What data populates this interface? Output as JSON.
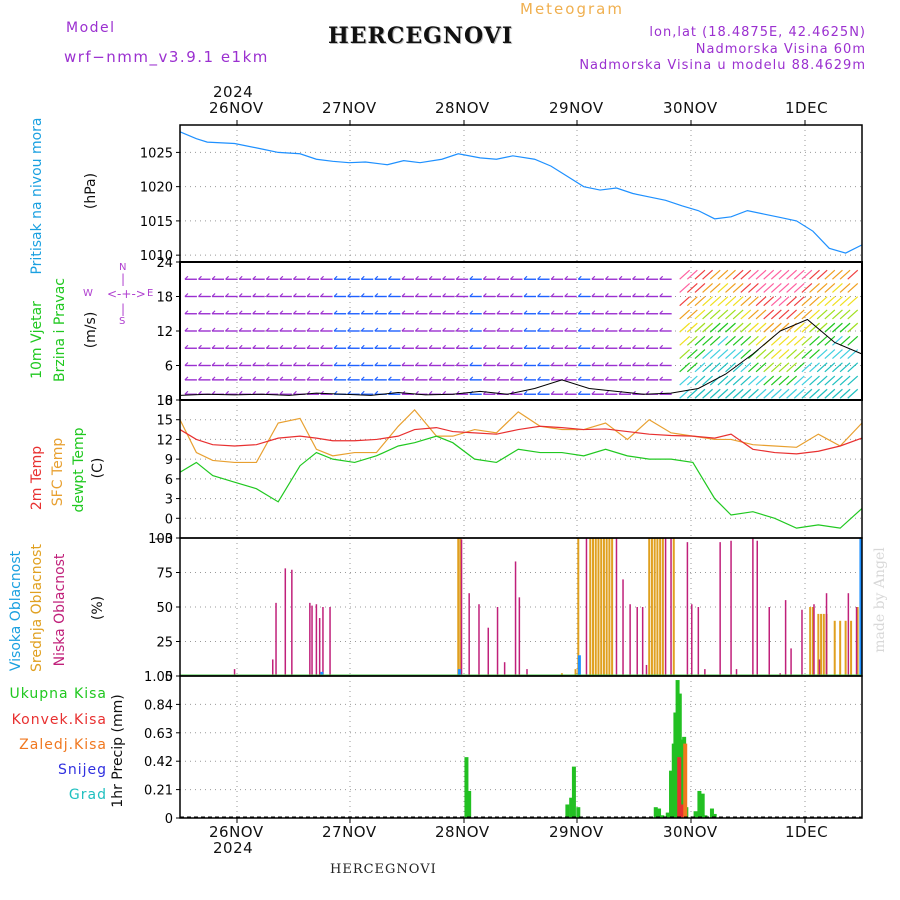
{
  "header": {
    "model_label": "Model",
    "model_name": "wrf−nmm_v3.9.1  e1km",
    "meteogram_label": "Meteogram",
    "location": "HERCEGNOVI",
    "lonlat": "lon,lat (18.4875E, 42.4625N)",
    "elevation": "Nadmorska Visina 60m",
    "model_elevation": "Nadmorska Visina u modelu 88.4629m"
  },
  "dates_top": [
    "26NOV",
    "27NOV",
    "28NOV",
    "29NOV",
    "30NOV",
    "1DEC"
  ],
  "dates_bottom": [
    "26NOV",
    "27NOV",
    "28NOV",
    "29NOV",
    "30NOV",
    "1DEC"
  ],
  "year": "2024",
  "footer": "HERCEGNOVI",
  "watermark": "made by Angel",
  "colors": {
    "pressure": "#1e90ff",
    "wind_speed": "#000000",
    "temp2m": "#e83030",
    "sfc_temp": "#e8a030",
    "dewpt": "#20c820",
    "high_cloud": "#1e90ff",
    "mid_cloud": "#e0a020",
    "low_cloud": "#c0207a",
    "total_precip": "#22c022",
    "conv_precip": "#e83030",
    "frz_precip": "#f07820",
    "snow": "#3030e0",
    "graupel": "#20c0c0"
  },
  "panels": {
    "pressure": {
      "labels": [
        "Pritisak na nivou mora"
      ],
      "unit": "(hPa)",
      "yticks": [
        "1010",
        "1015",
        "1020",
        "1025"
      ]
    },
    "wind": {
      "labels": [
        "10m Vjetar",
        "Brzina i Pravac"
      ],
      "unit": "(m/s)",
      "yticks": [
        "0",
        "6",
        "12",
        "18",
        "24"
      ],
      "compass": [
        "N",
        "E",
        "S",
        "W"
      ]
    },
    "temp": {
      "labels": [
        "2m Temp",
        "SFC Temp",
        "dewpt Temp"
      ],
      "unit": "(C)",
      "yticks": [
        "−3",
        "0",
        "3",
        "6",
        "9",
        "12",
        "15",
        "18"
      ]
    },
    "cloud": {
      "labels": [
        "Visoka Oblacnost",
        "Srednja Oblacnost",
        "Niska Oblacnost"
      ],
      "unit": "(%)",
      "yticks": [
        "0",
        "25",
        "50",
        "75",
        "100"
      ]
    },
    "precip": {
      "labels": [
        "Ukupna Kisa",
        "Konvek.Kisa",
        "Zaledj.Kisa",
        "Snijeg",
        "Grad"
      ],
      "unit": "1hr Precip (mm)",
      "yticks": [
        "0",
        "0.21",
        "0.42",
        "0.63",
        "0.84",
        "1.05"
      ]
    }
  },
  "chart_data": [
    {
      "type": "line",
      "name": "pressure",
      "x": [
        0,
        0.3,
        0.5,
        1.0,
        1.5,
        1.8,
        2.2,
        2.5,
        2.8,
        3.1,
        3.4,
        3.8,
        4.1,
        4.4,
        4.8,
        5.1,
        5.5,
        5.8,
        6.1,
        6.5,
        6.8,
        7.1,
        7.4,
        7.7,
        8.0,
        8.3,
        8.6,
        8.9,
        9.2,
        9.5,
        9.8,
        10.1,
        10.4,
        10.7,
        11.0,
        11.3,
        11.6,
        11.9,
        12.2,
        12.5
      ],
      "y": [
        1028,
        1027,
        1026.5,
        1026.3,
        1025.5,
        1025.0,
        1024.8,
        1024.0,
        1023.7,
        1023.5,
        1023.6,
        1023.2,
        1023.8,
        1023.5,
        1024.0,
        1024.8,
        1024.2,
        1024.0,
        1024.5,
        1024.0,
        1023.0,
        1021.5,
        1020.0,
        1019.5,
        1019.8,
        1019.0,
        1018.5,
        1018.0,
        1017.2,
        1016.5,
        1015.3,
        1015.6,
        1016.5,
        1016.0,
        1015.5,
        1015.0,
        1013.5,
        1011.0,
        1010.3,
        1011.5
      ],
      "ylim": [
        1009,
        1029
      ]
    },
    {
      "type": "line",
      "name": "wind_speed",
      "x": [
        0,
        0.5,
        1.0,
        1.5,
        2.0,
        2.5,
        3.0,
        3.5,
        4.0,
        4.5,
        5.0,
        5.5,
        6.0,
        6.5,
        7.0,
        7.5,
        8.0,
        8.5,
        9.0,
        9.5,
        10.0,
        10.5,
        11.0,
        11.5,
        12.0,
        12.5
      ],
      "y": [
        0.8,
        1.0,
        0.9,
        1.0,
        0.8,
        1.2,
        1.0,
        0.8,
        1.3,
        0.9,
        1.0,
        1.5,
        1.0,
        2.0,
        3.5,
        2.0,
        1.5,
        1.0,
        1.2,
        2.0,
        4.5,
        8.0,
        12.0,
        14.0,
        10.0,
        8.0
      ],
      "ylim": [
        0,
        24
      ]
    },
    {
      "type": "line",
      "name": "temperature",
      "x": [
        0,
        0.3,
        0.6,
        1.0,
        1.4,
        1.8,
        2.2,
        2.5,
        2.8,
        3.2,
        3.6,
        4.0,
        4.3,
        4.7,
        5.0,
        5.4,
        5.8,
        6.2,
        6.6,
        7.0,
        7.4,
        7.8,
        8.2,
        8.6,
        9.0,
        9.4,
        9.8,
        10.1,
        10.5,
        10.9,
        11.3,
        11.7,
        12.1,
        12.5
      ],
      "series": [
        {
          "name": "2m Temp",
          "values": [
            13.5,
            12.0,
            11.2,
            11.0,
            11.2,
            12.2,
            12.5,
            12.2,
            11.8,
            11.8,
            12.0,
            12.5,
            13.5,
            13.8,
            13.2,
            13.0,
            12.8,
            13.5,
            14.0,
            13.8,
            13.5,
            13.6,
            13.2,
            12.8,
            12.6,
            12.5,
            12.2,
            12.8,
            10.5,
            10.0,
            9.8,
            10.2,
            11.0,
            12.2
          ]
        },
        {
          "name": "SFC Temp",
          "values": [
            15.0,
            10.0,
            8.8,
            8.5,
            8.5,
            14.5,
            15.2,
            10.5,
            9.5,
            10.0,
            10.0,
            14.0,
            16.5,
            12.5,
            12.5,
            13.5,
            13.0,
            16.2,
            14.0,
            13.5,
            13.5,
            14.5,
            12.0,
            15.0,
            13.0,
            12.5,
            12.0,
            12.0,
            11.2,
            11.0,
            10.8,
            12.8,
            11.0,
            14.5
          ]
        },
        {
          "name": "dewpt Temp",
          "values": [
            7.0,
            8.5,
            6.5,
            5.5,
            4.5,
            2.5,
            8.0,
            10.0,
            9.0,
            8.5,
            9.5,
            11.0,
            11.5,
            12.5,
            11.5,
            9.0,
            8.5,
            10.5,
            10.0,
            10.0,
            9.5,
            10.5,
            9.5,
            9.0,
            9.0,
            8.5,
            3.0,
            0.5,
            1.0,
            0.0,
            -1.5,
            -1.0,
            -1.5,
            1.5
          ]
        }
      ],
      "ylim": [
        -3,
        18
      ]
    },
    {
      "type": "bar",
      "name": "cloud_cover",
      "series": [
        {
          "name": "Visoka Oblacnost",
          "x": [
            2.6,
            5.12,
            7.32,
            12.48
          ],
          "values": [
            3,
            5,
            15,
            100
          ]
        },
        {
          "name": "Srednja Oblacnost",
          "x": [
            5.1,
            5.14,
            7.0,
            7.25,
            7.3,
            7.52,
            7.57,
            7.62,
            7.67,
            7.72,
            7.77,
            7.82,
            7.87,
            7.92,
            8.6,
            8.65,
            8.7,
            8.75,
            8.8,
            8.85,
            9.05,
            11.55,
            11.6,
            11.7,
            11.75,
            11.8,
            11.85,
            12.0,
            12.1,
            12.2,
            12.3,
            12.42
          ],
          "values": [
            100,
            100,
            2,
            5,
            100,
            100,
            100,
            100,
            100,
            100,
            100,
            100,
            100,
            100,
            100,
            100,
            100,
            100,
            100,
            100,
            100,
            50,
            50,
            45,
            45,
            45,
            45,
            40,
            40,
            40,
            40,
            50
          ]
        },
        {
          "name": "Niska Oblacnost",
          "x": [
            1.0,
            1.7,
            1.76,
            1.93,
            2.05,
            2.38,
            2.42,
            2.5,
            2.56,
            2.62,
            2.75,
            5.16,
            5.3,
            5.48,
            5.65,
            5.82,
            5.95,
            6.15,
            6.22,
            6.36,
            7.45,
            8.0,
            8.12,
            8.25,
            8.38,
            8.48,
            8.55,
            8.9,
            9.0,
            9.3,
            9.38,
            9.5,
            9.62,
            9.9,
            10.1,
            10.2,
            10.5,
            10.58,
            10.8,
            11.0,
            11.1,
            11.2,
            11.4,
            11.62,
            11.72,
            11.85,
            12.25,
            12.4
          ],
          "values": [
            5,
            12,
            53,
            78,
            77,
            53,
            51,
            52,
            42,
            50,
            50,
            99,
            60,
            52,
            35,
            50,
            10,
            83,
            57,
            5,
            100,
            100,
            70,
            52,
            50,
            50,
            8,
            100,
            100,
            97,
            52,
            50,
            5,
            97,
            98,
            5,
            100,
            98,
            50,
            2,
            55,
            20,
            48,
            52,
            12,
            60,
            60,
            50
          ]
        }
      ],
      "ylim": [
        0,
        100
      ]
    },
    {
      "type": "bar",
      "name": "precip_1hr",
      "series": [
        {
          "name": "Ukupna Kisa",
          "x": [
            5.25,
            5.3,
            7.1,
            7.17,
            7.22,
            7.3,
            8.72,
            8.78,
            8.84,
            8.94,
            9.0,
            9.05,
            9.08,
            9.12,
            9.16,
            9.2,
            9.24,
            9.28,
            9.45,
            9.52,
            9.58,
            9.63,
            9.75,
            9.8
          ],
          "values": [
            0.45,
            0.2,
            0.1,
            0.15,
            0.38,
            0.08,
            0.08,
            0.07,
            0.02,
            0.04,
            0.35,
            0.55,
            0.78,
            1.02,
            0.92,
            0.58,
            0.6,
            0.08,
            0.05,
            0.2,
            0.18,
            0.02,
            0.07,
            0.03
          ]
        },
        {
          "name": "Konvek.Kisa",
          "x": [
            9.15,
            9.22
          ],
          "values": [
            0.45,
            0.1
          ]
        },
        {
          "name": "Zaledj.Kisa",
          "x": [
            9.26
          ],
          "values": [
            0.55
          ]
        },
        {
          "name": "Snijeg",
          "x": [],
          "values": []
        },
        {
          "name": "Grad",
          "x": [],
          "values": []
        }
      ],
      "ylim": [
        0,
        1.05
      ]
    }
  ]
}
